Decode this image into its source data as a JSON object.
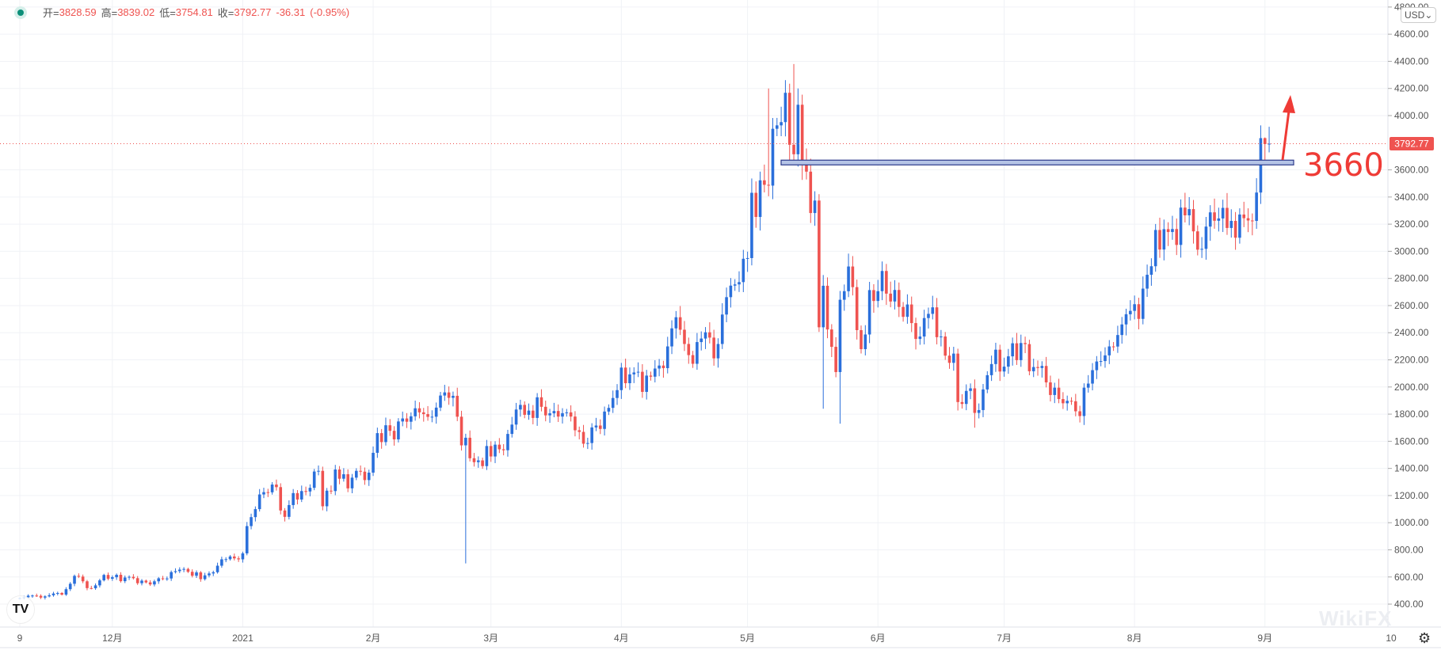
{
  "legend": {
    "open_label": "开=",
    "open": "3828.59",
    "high_label": "高=",
    "high": "3839.02",
    "low_label": "低=",
    "low": "3754.81",
    "close_label": "收=",
    "close": "3792.77",
    "change": "-36.31",
    "change_pct": "(-0.95%)"
  },
  "currency_button": "USD⌄",
  "watermark": "WikiFX",
  "logo": "TV",
  "annotation": {
    "label": "3660",
    "level": 3660
  },
  "colors": {
    "up": "#2a6fdb",
    "down": "#ef5350",
    "annotation": "#ef3b36"
  },
  "chart_data": {
    "type": "candlestick",
    "title": "",
    "last_price": 3792.77,
    "last_price_label": "3792.77",
    "ylim": [
      300,
      4850
    ],
    "y_ticks": [
      "4800.00",
      "4600.00",
      "4400.00",
      "4200.00",
      "4000.00",
      "3600.00",
      "3400.00",
      "3200.00",
      "3000.00",
      "2800.00",
      "2600.00",
      "2400.00",
      "2200.00",
      "2000.00",
      "1800.00",
      "1600.00",
      "1400.00",
      "1200.00",
      "1000.00",
      "800.00",
      "600.00",
      "400.00"
    ],
    "y_tick_values": [
      4800,
      4600,
      4400,
      4200,
      4000,
      3600,
      3400,
      3200,
      3000,
      2800,
      2600,
      2400,
      2200,
      2000,
      1800,
      1600,
      1400,
      1200,
      1000,
      800,
      600,
      400
    ],
    "x_ticks": [
      {
        "label": "9",
        "day": 0
      },
      {
        "label": "12月",
        "day": 22
      },
      {
        "label": "2021",
        "day": 53
      },
      {
        "label": "2月",
        "day": 84
      },
      {
        "label": "3月",
        "day": 112
      },
      {
        "label": "4月",
        "day": 143
      },
      {
        "label": "5月",
        "day": 173
      },
      {
        "label": "6月",
        "day": 204
      },
      {
        "label": "7月",
        "day": 234
      },
      {
        "label": "8月",
        "day": 265
      },
      {
        "label": "9月",
        "day": 296
      },
      {
        "label": "10",
        "day": 326
      }
    ],
    "first_open": 440,
    "closes": [
      444,
      450,
      462,
      463,
      461,
      448,
      457,
      465,
      478,
      482,
      470,
      510,
      550,
      608,
      603,
      568,
      518,
      517,
      538,
      575,
      615,
      587,
      598,
      616,
      569,
      596,
      601,
      591,
      554,
      573,
      560,
      545,
      568,
      590,
      586,
      589,
      636,
      643,
      654,
      659,
      638,
      609,
      634,
      584,
      612,
      626,
      635,
      683,
      730,
      731,
      751,
      737,
      730,
      774,
      975,
      1041,
      1100,
      1208,
      1225,
      1224,
      1281,
      1262,
      1090,
      1043,
      1130,
      1218,
      1171,
      1233,
      1230,
      1257,
      1377,
      1382,
      1121,
      1236,
      1233,
      1392,
      1324,
      1357,
      1253,
      1332,
      1382,
      1376,
      1314,
      1369,
      1515,
      1660,
      1594,
      1718,
      1677,
      1614,
      1746,
      1768,
      1744,
      1784,
      1843,
      1813,
      1800,
      1780,
      1781,
      1848,
      1937,
      1960,
      1920,
      1935,
      1781,
      1570,
      1626,
      1475,
      1446,
      1459,
      1417,
      1565,
      1488,
      1575,
      1541,
      1534,
      1654,
      1723,
      1834,
      1868,
      1795,
      1826,
      1772,
      1924,
      1854,
      1791,
      1806,
      1823,
      1782,
      1807,
      1813,
      1782,
      1681,
      1669,
      1582,
      1587,
      1702,
      1716,
      1691,
      1819,
      1846,
      1919,
      1977,
      2143,
      2028,
      2093,
      2107,
      2112,
      1964,
      2084,
      2076,
      2136,
      2158,
      2139,
      2299,
      2432,
      2514,
      2422,
      2317,
      2235,
      2171,
      2331,
      2357,
      2403,
      2364,
      2211,
      2317,
      2534,
      2662,
      2747,
      2756,
      2773,
      2945,
      2950,
      3431,
      3253,
      3523,
      3490,
      3484,
      3903,
      3928,
      3952,
      4168,
      3785,
      3715,
      4080,
      3638,
      3587,
      3282,
      3374,
      2440,
      2746,
      2424,
      2296,
      2110,
      2643,
      2706,
      2888,
      2736,
      2419,
      2279,
      2387,
      2714,
      2634,
      2706,
      2855,
      2688,
      2630,
      2715,
      2590,
      2517,
      2608,
      2471,
      2354,
      2372,
      2508,
      2539,
      2587,
      2367,
      2372,
      2231,
      2178,
      2246,
      1889,
      1875,
      1971,
      1990,
      1809,
      1830,
      1982,
      2087,
      2169,
      2275,
      2114,
      2150,
      2226,
      2322,
      2198,
      2324,
      2316,
      2116,
      2147,
      2140,
      2155,
      2034,
      1941,
      1995,
      1911,
      1880,
      1898,
      1895,
      1821,
      1786,
      1995,
      2025,
      2124,
      2188,
      2191,
      2233,
      2299,
      2298,
      2383,
      2461,
      2536,
      2561,
      2610,
      2502,
      2725,
      2827,
      2890,
      3157,
      3013,
      3163,
      3142,
      3164,
      3047,
      3322,
      3265,
      3311,
      3147,
      3012,
      3018,
      3182,
      3287,
      3225,
      3242,
      3320,
      3172,
      3224,
      3100,
      3271,
      3244,
      3227,
      3224,
      3433,
      3834,
      3790,
      3792.77
    ],
    "wick_pct": 0.035,
    "wick_overrides": [
      {
        "day": 106,
        "low": 700
      },
      {
        "day": 184,
        "high": 4380
      },
      {
        "day": 191,
        "low": 1840
      },
      {
        "day": 195,
        "low": 1730
      },
      {
        "day": 178,
        "high": 4200
      },
      {
        "day": 185,
        "high": 4200
      },
      {
        "day": 296,
        "high": 3839
      },
      {
        "day": 227,
        "low": 1700
      },
      {
        "day": 253,
        "low": 1720
      }
    ]
  }
}
